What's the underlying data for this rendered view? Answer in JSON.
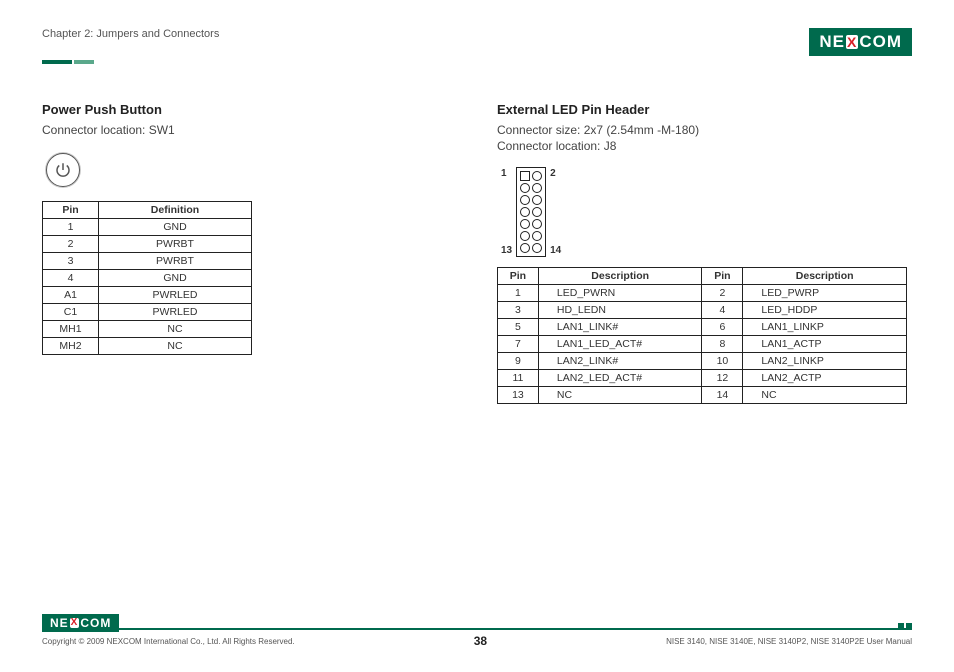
{
  "header": {
    "chapter": "Chapter 2: Jumpers and Connectors",
    "logo_parts": [
      "NE",
      "X",
      "COM"
    ]
  },
  "left": {
    "title": "Power Push Button",
    "sub1": "Connector location: SW1",
    "table": {
      "headers": [
        "Pin",
        "Definition"
      ],
      "rows": [
        [
          "1",
          "GND"
        ],
        [
          "2",
          "PWRBT"
        ],
        [
          "3",
          "PWRBT"
        ],
        [
          "4",
          "GND"
        ],
        [
          "A1",
          "PWRLED"
        ],
        [
          "C1",
          "PWRLED"
        ],
        [
          "MH1",
          "NC"
        ],
        [
          "MH2",
          "NC"
        ]
      ]
    }
  },
  "right": {
    "title": "External LED Pin Header",
    "sub1": "Connector size:  2x7 (2.54mm -M-180)",
    "sub2": "Connector location: J8",
    "diagram": {
      "top_left": "1",
      "top_right": "2",
      "bot_left": "13",
      "bot_right": "14",
      "rows": 7
    },
    "table": {
      "headers": [
        "Pin",
        "Description",
        "Pin",
        "Description"
      ],
      "rows": [
        [
          "1",
          "LED_PWRN",
          "2",
          "LED_PWRP"
        ],
        [
          "3",
          "HD_LEDN",
          "4",
          "LED_HDDP"
        ],
        [
          "5",
          "LAN1_LINK#",
          "6",
          "LAN1_LINKP"
        ],
        [
          "7",
          "LAN1_LED_ACT#",
          "8",
          "LAN1_ACTP"
        ],
        [
          "9",
          "LAN2_LINK#",
          "10",
          "LAN2_LINKP"
        ],
        [
          "11",
          "LAN2_LED_ACT#",
          "12",
          "LAN2_ACTP"
        ],
        [
          "13",
          "NC",
          "14",
          "NC"
        ]
      ]
    }
  },
  "footer": {
    "copyright": "Copyright © 2009 NEXCOM International Co., Ltd. All Rights Reserved.",
    "page": "38",
    "manual": "NISE 3140, NISE 3140E, NISE 3140P2, NISE 3140P2E User Manual"
  },
  "colors": {
    "brand_green": "#006a4d",
    "brand_red": "#d82028"
  }
}
